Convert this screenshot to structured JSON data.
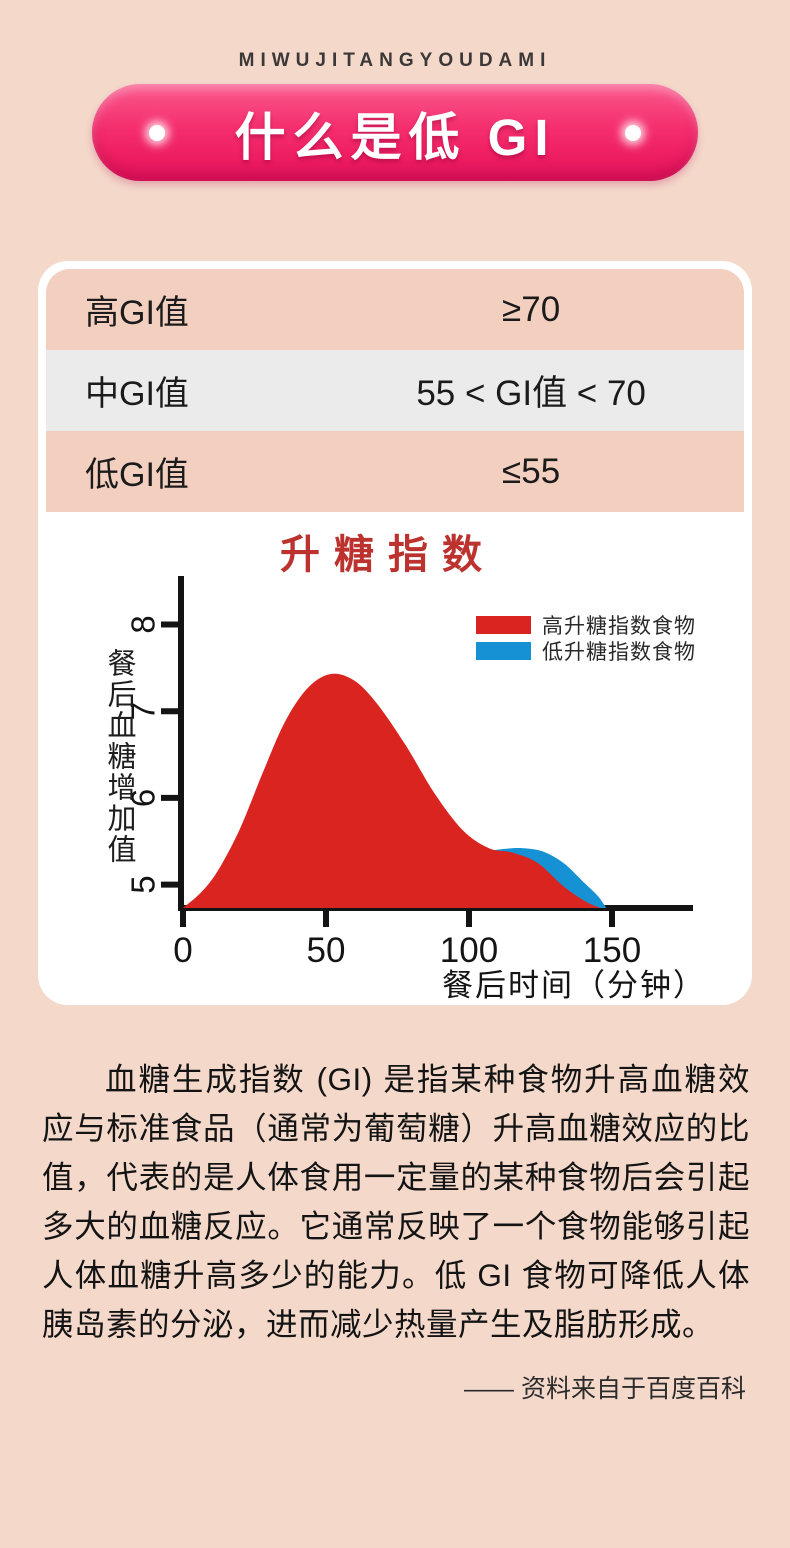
{
  "header": {
    "brand": "MIWUJITANGYOUDAMI",
    "title": "什么是低 GI"
  },
  "gi_table": {
    "rows": [
      {
        "label": "高GI值",
        "value": "≥70"
      },
      {
        "label": "中GI值",
        "value": "55 < GI值 < 70"
      },
      {
        "label": "低GI值",
        "value": "≤55"
      }
    ]
  },
  "chart_data": {
    "type": "area",
    "title": "升糖指数",
    "xlabel": "餐后时间（分钟）",
    "ylabel": "餐后血糖增加值",
    "x_ticks": [
      0,
      50,
      100,
      150
    ],
    "y_ticks": [
      5,
      6,
      7,
      8
    ],
    "xlim": [
      0,
      178
    ],
    "ylim": [
      4.73,
      8.5
    ],
    "grid": false,
    "legend_position": "top-right",
    "series": [
      {
        "id": "high-gi",
        "name": "高升糖指数食物",
        "color": "#d9241f",
        "points": [
          [
            0,
            4.73
          ],
          [
            6,
            4.9
          ],
          [
            12,
            5.15
          ],
          [
            20,
            5.65
          ],
          [
            28,
            6.3
          ],
          [
            36,
            6.9
          ],
          [
            44,
            7.28
          ],
          [
            52,
            7.43
          ],
          [
            60,
            7.35
          ],
          [
            68,
            7.08
          ],
          [
            78,
            6.6
          ],
          [
            88,
            6.05
          ],
          [
            98,
            5.62
          ],
          [
            107,
            5.42
          ],
          [
            115,
            5.37
          ],
          [
            124,
            5.25
          ],
          [
            133,
            4.98
          ],
          [
            141,
            4.8
          ],
          [
            146,
            4.73
          ]
        ]
      },
      {
        "id": "low-gi",
        "name": "低升糖指数食物",
        "color": "#1692d4",
        "points": [
          [
            0,
            4.73
          ],
          [
            15,
            4.78
          ],
          [
            30,
            4.84
          ],
          [
            45,
            4.91
          ],
          [
            60,
            5.0
          ],
          [
            75,
            5.12
          ],
          [
            90,
            5.26
          ],
          [
            102,
            5.36
          ],
          [
            112,
            5.41
          ],
          [
            119,
            5.42
          ],
          [
            126,
            5.38
          ],
          [
            133,
            5.25
          ],
          [
            140,
            5.03
          ],
          [
            145,
            4.87
          ],
          [
            148,
            4.73
          ]
        ]
      }
    ]
  },
  "body_text": {
    "paragraph": "血糖生成指数 (GI) 是指某种食物升高血糖效应与标准食品（通常为葡萄糖）升高血糖效应的比值，代表的是人体食用一定量的某种食物后会引起多大的血糖反应。它通常反映了一个食物能够引起人体血糖升高多少的能力。低 GI 食物可降低人体胰岛素的分泌，进而减少热量产生及脂肪形成。",
    "source": "—— 资料来自于百度百科"
  },
  "colors": {
    "background": "#f4d9cb",
    "banner_pink": "#f02e6e",
    "row_salmon": "#f3cfc0",
    "row_gray": "#ebebeb",
    "high_gi_red": "#d9241f",
    "low_gi_blue": "#1692d4",
    "chart_title_red": "#bc322e",
    "axis_black": "#141414"
  }
}
